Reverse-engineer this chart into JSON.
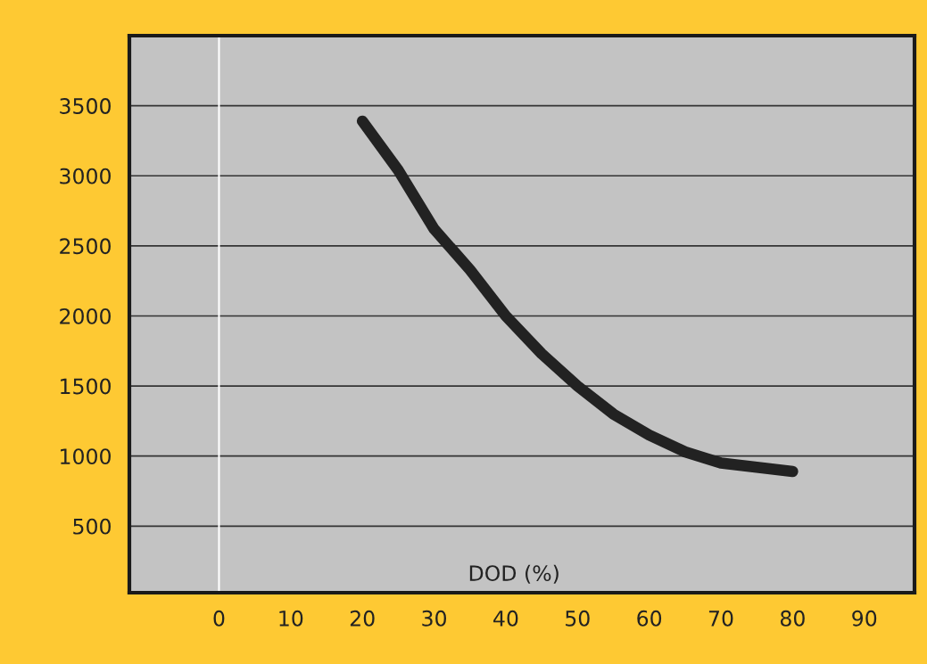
{
  "chart_data": {
    "type": "line",
    "xlabel": "DOD (%)",
    "series": [
      {
        "color": "#222222",
        "x": [
          20,
          25,
          30,
          35,
          40,
          45,
          50,
          55,
          60,
          65,
          70,
          75,
          80
        ],
        "values": [
          3390,
          3040,
          2620,
          2330,
          2000,
          1730,
          1500,
          1300,
          1150,
          1030,
          950,
          920,
          890
        ]
      }
    ],
    "xlim": [
      -12.5,
      97
    ],
    "ylim": [
      25,
      4000
    ],
    "xticks": [
      0,
      10,
      20,
      30,
      40,
      50,
      60,
      70,
      80,
      90
    ],
    "yticks": [
      500,
      1000,
      1500,
      2000,
      2500,
      3000,
      3500
    ],
    "grid": "y",
    "ref_lines": [
      {
        "axis": "x",
        "value": 0,
        "label": null,
        "color": "#ffffff"
      }
    ]
  }
}
